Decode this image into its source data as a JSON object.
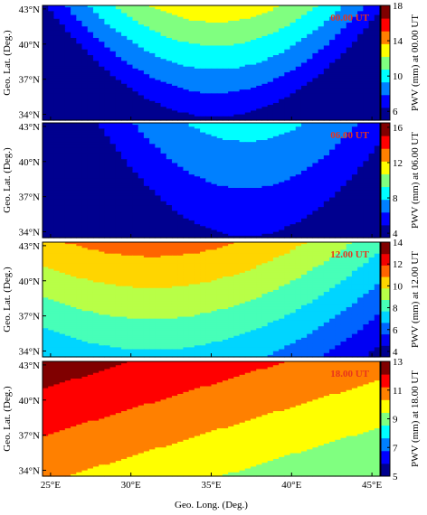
{
  "chart_data": {
    "type": "heatmap",
    "shared_xlabel": "Geo. Long. (Deg.)",
    "x_ticks": [
      {
        "value": 25,
        "label": "25°E"
      },
      {
        "value": 30,
        "label": "30°E"
      },
      {
        "value": 35,
        "label": "35°E"
      },
      {
        "value": 40,
        "label": "40°E"
      },
      {
        "value": 45,
        "label": "45°E"
      }
    ],
    "y_ticks": [
      {
        "value": 34,
        "label": "34°N"
      },
      {
        "value": 37,
        "label": "37°N"
      },
      {
        "value": 40,
        "label": "40°N"
      },
      {
        "value": 43,
        "label": "43°N"
      }
    ],
    "xlim": [
      24.5,
      45.5
    ],
    "ylim": [
      33.5,
      43.3
    ],
    "colormap": [
      "#00008f",
      "#0000ff",
      "#0080ff",
      "#00ffff",
      "#80ff80",
      "#ffff00",
      "#ff8000",
      "#ff0000",
      "#800000"
    ],
    "panels": [
      {
        "time_label": "00.00 UT",
        "ylabel": "Geo. Lat. (Deg.)",
        "colorbar_label": "PWV (mm) at 00.00 UT",
        "clim": [
          5,
          18
        ],
        "colorbar_ticks": [
          6,
          10,
          14,
          18
        ],
        "levels": 9,
        "field": {
          "a": 17.9,
          "bx": -1.55,
          "by": 1.9,
          "x0": 40,
          "y0": 35.5,
          "c": 0.09
        },
        "note": "values decrease toward southeast, curved contours"
      },
      {
        "time_label": "06.00 UT",
        "ylabel": "Geo. Lat. (Deg.)",
        "colorbar_label": "PWV (mm) at 06.00 UT",
        "clim": [
          3.5,
          16.5
        ],
        "colorbar_ticks": [
          4,
          8,
          12,
          16
        ],
        "levels": 9,
        "field": {
          "a": 16.2,
          "bx": -1.28,
          "by": 0.95,
          "x0": 43,
          "y0": 33.5,
          "c": 0.06
        },
        "note": "values decrease toward southeast"
      },
      {
        "time_label": "12.00 UT",
        "ylabel": "Geo. Lat. (Deg.)",
        "colorbar_label": "PWV (mm) at 12.00 UT",
        "clim": [
          3.5,
          14
        ],
        "colorbar_ticks": [
          4,
          6,
          8,
          10,
          12,
          14
        ],
        "levels": 10,
        "field": {
          "a": 14.2,
          "bx": -0.95,
          "by": 1.3,
          "x0": 40,
          "y0": 33.5,
          "c": 0.03
        },
        "note": "values decrease toward southeast"
      },
      {
        "time_label": "18.00 UT",
        "ylabel": "Geo. Lat. (Deg.)",
        "colorbar_label": "PWV (mm) at 18.00 UT",
        "clim": [
          5,
          13
        ],
        "colorbar_ticks": [
          5,
          7,
          9,
          11,
          13
        ],
        "levels": 9,
        "field": {
          "a": 13.3,
          "bx": -0.4,
          "by": 0.95,
          "x0": 40,
          "y0": 33.5,
          "c": 0.0
        },
        "note": "values decrease toward southeast"
      }
    ]
  }
}
